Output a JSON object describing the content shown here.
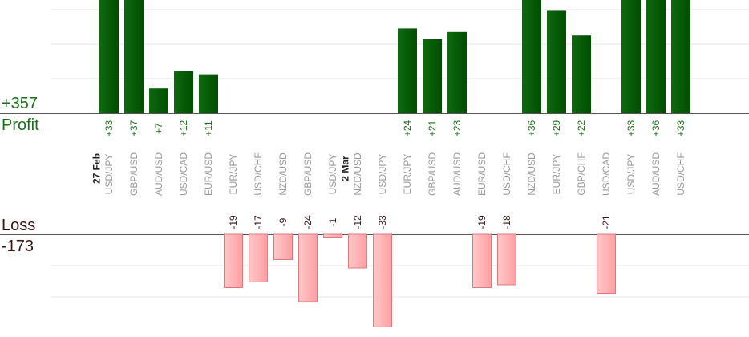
{
  "summary": {
    "profit_total": "+357",
    "profit_label": "Profit",
    "loss_label": "Loss",
    "loss_total": "-173"
  },
  "colors": {
    "profit_bar": "#0e6a0e",
    "profit_bar_dark": "#004d00",
    "profit_text": "#1a6e1a",
    "loss_bar": "#ffb3b3",
    "loss_bar_border": "#e07a7a",
    "loss_text": "#3a1414",
    "axis_text": "#999999",
    "gridline": "#e6e6e6"
  },
  "chart_data": {
    "type": "bar",
    "title": "",
    "xlabel": "",
    "ylabel": "",
    "grid": true,
    "categories": [
      "USD/JPY",
      "GBP/USD",
      "AUD/USD",
      "USD/CAD",
      "EUR/USD",
      "EUR/JPY",
      "USD/CHF",
      "NZD/USD",
      "GBP/USD",
      "USD/JPY",
      "NZD/USD",
      "USD/JPY",
      "EUR/JPY",
      "GBP/USD",
      "AUD/USD",
      "EUR/USD",
      "USD/CHF",
      "NZD/USD",
      "EUR/JPY",
      "GBP/CHF",
      "USD/CAD",
      "USD/JPY",
      "AUD/USD",
      "USD/CHF"
    ],
    "date_markers": [
      {
        "label": "27 Feb",
        "before_index": 0
      },
      {
        "label": "2 Mar",
        "before_index": 10
      }
    ],
    "values": [
      33,
      37,
      7,
      12,
      11,
      -19,
      -17,
      -9,
      -24,
      -1,
      -12,
      -33,
      24,
      21,
      23,
      -19,
      -18,
      36,
      29,
      22,
      -21,
      33,
      36,
      33
    ],
    "value_labels": [
      "+33",
      "+37",
      "+7",
      "+12",
      "+11",
      "-19",
      "-17",
      "-9",
      "-24",
      "-1",
      "-12",
      "-33",
      "+24",
      "+21",
      "+23",
      "-19",
      "-18",
      "+36",
      "+29",
      "+22",
      "-21",
      "+33",
      "+36",
      "+33"
    ]
  }
}
